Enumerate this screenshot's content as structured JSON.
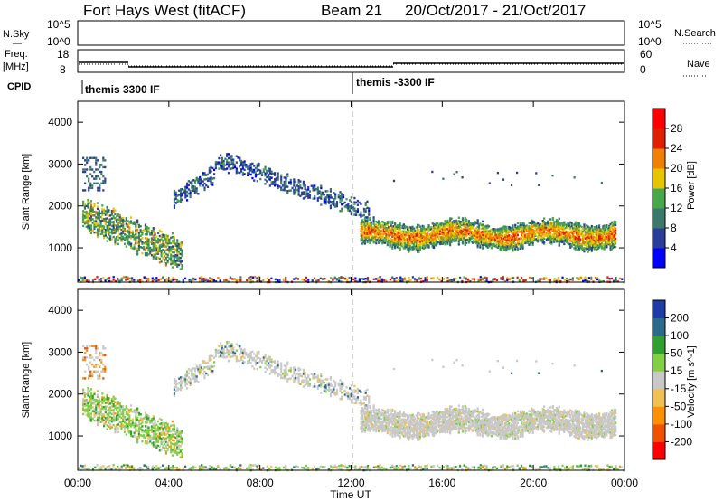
{
  "header": {
    "title": "Fort Hays West (fitACF)",
    "beam": "Beam 21",
    "date_range": "20/Oct/2017 - 21/Oct/2017"
  },
  "top_panels": {
    "nsky_label": "N.Sky",
    "nsky_ticks": [
      "10^5",
      "10^0"
    ],
    "nsearch_label": "N.Search",
    "nsearch_ticks": [
      "10^5",
      "10^0"
    ],
    "freq_label": "Freq.",
    "freq_unit": "[MHz]",
    "freq_ticks": [
      "18",
      "8"
    ],
    "nave_label": "Nave",
    "nave_ticks": [
      "60",
      "0"
    ],
    "cpid_label": "CPID",
    "cpid_segments": [
      {
        "label": "themis 3300 IF",
        "start_hour": 0
      },
      {
        "label": "themis -3300 IF",
        "start_hour": 12
      }
    ]
  },
  "xaxis": {
    "label": "Time UT",
    "ticks": [
      "00:00",
      "04:00",
      "08:00",
      "12:00",
      "16:00",
      "20:00",
      "00:00"
    ]
  },
  "colors": {
    "power": [
      "#0000ff",
      "#2a3d9a",
      "#3a7a6a",
      "#47a84a",
      "#e8c400",
      "#f08000",
      "#e02000",
      "#ff0000"
    ],
    "velocity": [
      "#ff0000",
      "#f05000",
      "#ff9000",
      "#f0c050",
      "#c8c8c8",
      "#80d040",
      "#30a030",
      "#2a6a8a",
      "#1c3aa8"
    ]
  },
  "chart_data": [
    {
      "type": "heatmap",
      "title": "Power",
      "ylabel": "Slant Range [km]",
      "xlabel": "Time UT",
      "xlim_hours": [
        0,
        24
      ],
      "ylim": [
        180,
        4500
      ],
      "yticks": [
        1000,
        2000,
        3000,
        4000
      ],
      "colorbar": {
        "label": "Power [dB]",
        "ticks": [
          4,
          8,
          12,
          16,
          20,
          24,
          28
        ],
        "range": [
          0,
          32
        ]
      },
      "features": [
        {
          "name": "low-range clutter",
          "hours": [
            0,
            24
          ],
          "range_km": [
            200,
            330
          ],
          "dominant_value_db": "mixed 4-28"
        },
        {
          "name": "early arc",
          "hours": [
            0.5,
            4.5
          ],
          "range_km": [
            800,
            2100
          ],
          "dominant_value_db": 14
        },
        {
          "name": "mid-night arc",
          "hours": [
            4,
            12.5
          ],
          "range_km": [
            1900,
            3400
          ],
          "dominant_value_db": 10
        },
        {
          "name": "late band",
          "hours": [
            12.5,
            23.5
          ],
          "range_km": [
            1000,
            1700
          ],
          "dominant_value_db": 20
        }
      ]
    },
    {
      "type": "heatmap",
      "title": "Velocity",
      "ylabel": "Slant Range [km]",
      "xlabel": "Time UT",
      "xlim_hours": [
        0,
        24
      ],
      "ylim": [
        180,
        4500
      ],
      "yticks": [
        1000,
        2000,
        3000,
        4000
      ],
      "colorbar": {
        "label": "Velocity [m s^-1]",
        "ticks": [
          -200,
          -100,
          -50,
          -15,
          15,
          50,
          100,
          200
        ]
      },
      "features": [
        {
          "name": "early arc",
          "hours": [
            0.5,
            4.5
          ],
          "range_km": [
            800,
            2100
          ],
          "dominant_value_ms": 50
        },
        {
          "name": "mid-night arc",
          "hours": [
            4,
            12.5
          ],
          "range_km": [
            1900,
            3400
          ],
          "dominant_value_ms": 0
        },
        {
          "name": "late band",
          "hours": [
            12.5,
            23.5
          ],
          "range_km": [
            1000,
            1700
          ],
          "dominant_value_ms": 0
        }
      ]
    }
  ]
}
